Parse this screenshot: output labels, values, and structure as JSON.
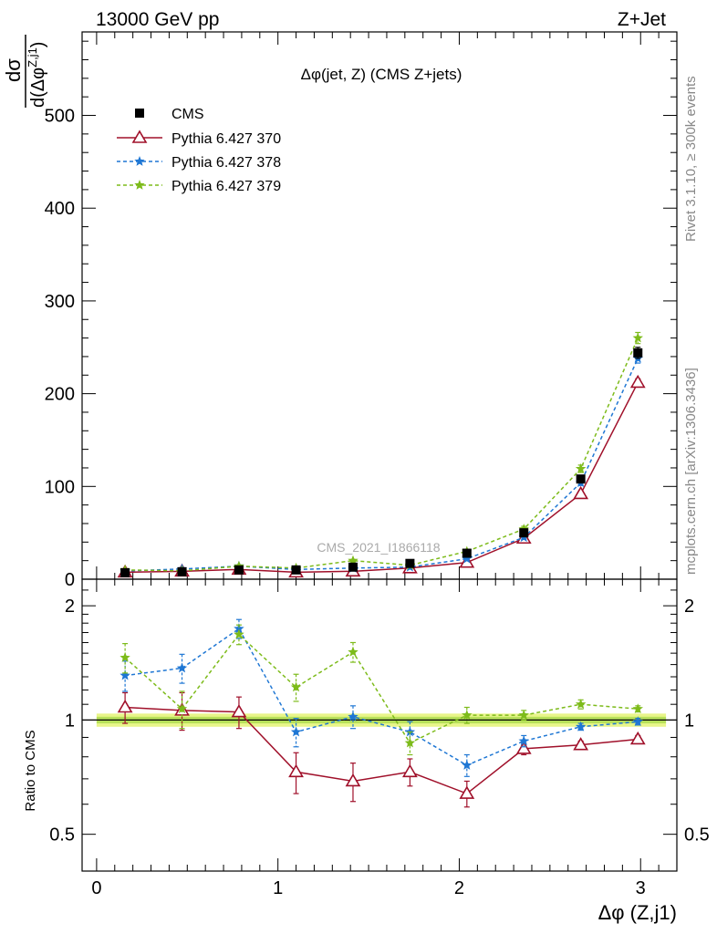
{
  "header": {
    "left": "13000 GeV pp",
    "right": "Z+Jet"
  },
  "plot_title": "Δφ(jet, Z) (CMS Z+jets)",
  "side_labels": {
    "rivet": "Rivet 3.1.10, ≥ 300k events",
    "mcplots": "mcplots.cern.ch [arXiv:1306.3436]"
  },
  "watermark": "CMS_2021_I1866118",
  "ylabel_top": {
    "numerator": "dσ",
    "denominator_prefix": "d(Δφ",
    "denominator_sup": "Z,j1",
    "denominator_suffix": ")"
  },
  "ylabel_bottom": "Ratio to CMS",
  "xlabel": "Δφ (Z,j1)",
  "colors": {
    "data": "#000000",
    "p370": "#a0102a",
    "p378": "#1f77d4",
    "p379": "#7dbb1a",
    "band_outer": "#e8f58a",
    "band_inner": "#b7e05a"
  },
  "chart_data": [
    {
      "type": "line",
      "name": "main",
      "x": [
        0.157,
        0.471,
        0.785,
        1.1,
        1.414,
        1.728,
        2.042,
        2.356,
        2.67,
        2.985
      ],
      "xlim": [
        -0.08,
        3.2
      ],
      "ylim": [
        0,
        590
      ],
      "yticks": [
        0,
        100,
        200,
        300,
        400,
        500
      ],
      "xticks": [
        0,
        1,
        2,
        3
      ],
      "series": [
        {
          "name": "CMS",
          "key": "data",
          "marker": "square",
          "dash": "none",
          "values": [
            7,
            8,
            10,
            10,
            13,
            17,
            28,
            50,
            108,
            244
          ],
          "errors": [
            1,
            1,
            1,
            1,
            1,
            1,
            2,
            3,
            4,
            6
          ]
        },
        {
          "name": "Pythia 6.427 370",
          "key": "p370",
          "marker": "triangle",
          "dash": "none",
          "values": [
            7.5,
            8.5,
            10.5,
            7.5,
            8.5,
            12,
            18,
            44,
            92,
            212
          ],
          "errors": [
            0.6,
            0.6,
            0.6,
            0.5,
            0.6,
            0.7,
            1,
            2,
            3,
            4
          ]
        },
        {
          "name": "Pythia 6.427 378",
          "key": "p378",
          "marker": "star",
          "dash": "4,3",
          "values": [
            8.8,
            11,
            14,
            10.5,
            12,
            13,
            22,
            45,
            104,
            238
          ],
          "errors": [
            0.7,
            0.8,
            0.8,
            0.7,
            0.8,
            0.8,
            1,
            2,
            3,
            5
          ]
        },
        {
          "name": "Pythia 6.427 379",
          "key": "p379",
          "marker": "star",
          "dash": "4,3",
          "values": [
            10,
            9,
            14,
            12,
            20,
            15,
            30,
            54,
            119,
            260
          ],
          "errors": [
            0.8,
            0.7,
            0.8,
            0.8,
            1,
            0.8,
            1,
            3,
            4,
            6
          ]
        }
      ]
    },
    {
      "type": "line",
      "name": "ratio",
      "x": [
        0.157,
        0.471,
        0.785,
        1.1,
        1.414,
        1.728,
        2.042,
        2.356,
        2.67,
        2.985
      ],
      "xlim": [
        -0.08,
        3.2
      ],
      "ylim": [
        0.4,
        2.35
      ],
      "yticks": [
        0.5,
        1,
        2
      ],
      "series": [
        {
          "name": "Pythia 6.427 370",
          "key": "p370",
          "marker": "triangle",
          "dash": "none",
          "values": [
            1.08,
            1.06,
            1.05,
            0.73,
            0.69,
            0.73,
            0.64,
            0.84,
            0.86,
            0.89
          ],
          "errors": [
            0.1,
            0.12,
            0.1,
            0.09,
            0.08,
            0.06,
            0.05,
            0.03,
            0.02,
            0.02
          ]
        },
        {
          "name": "Pythia 6.427 378",
          "key": "p378",
          "marker": "star",
          "dash": "4,3",
          "values": [
            1.31,
            1.37,
            1.74,
            0.93,
            1.02,
            0.93,
            0.76,
            0.88,
            0.96,
            0.99
          ],
          "errors": [
            0.12,
            0.12,
            0.1,
            0.08,
            0.07,
            0.06,
            0.05,
            0.03,
            0.02,
            0.02
          ]
        },
        {
          "name": "Pythia 6.427 379",
          "key": "p379",
          "marker": "star",
          "dash": "4,3",
          "values": [
            1.46,
            1.07,
            1.68,
            1.22,
            1.51,
            0.87,
            1.03,
            1.03,
            1.1,
            1.07
          ],
          "errors": [
            0.13,
            0.12,
            0.1,
            0.1,
            0.09,
            0.06,
            0.05,
            0.03,
            0.03,
            0.02
          ]
        }
      ],
      "data_band": {
        "outer": 0.04,
        "inner": 0.02
      }
    }
  ]
}
